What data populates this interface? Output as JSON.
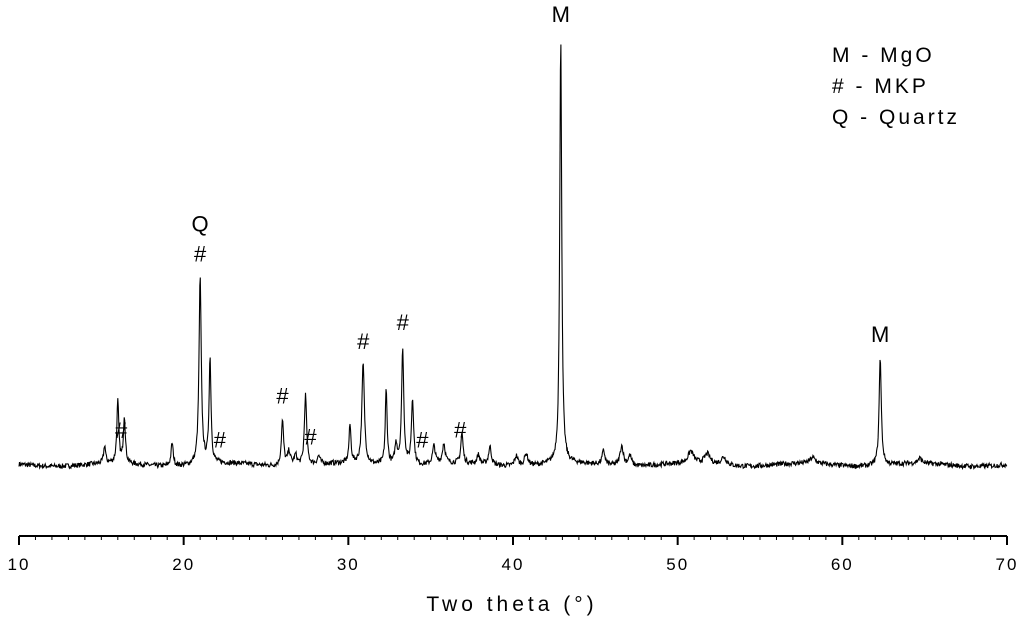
{
  "chart_data": {
    "type": "line",
    "xlabel": "Two theta (°)",
    "ylabel": "",
    "xlim": [
      10,
      70
    ],
    "x_ticks": [
      "10",
      "20",
      "30",
      "40",
      "50",
      "60",
      "70"
    ],
    "legend": [
      "M - MgO",
      "# - MKP",
      "Q - Quartz"
    ],
    "legend_position": "top-right",
    "grid": false,
    "baseline": 0,
    "annotations": [
      {
        "x": 21.0,
        "lines": [
          "Q",
          "#"
        ]
      },
      {
        "x": 16.2,
        "lines": [
          "#"
        ]
      },
      {
        "x": 22.2,
        "lines": [
          "#"
        ]
      },
      {
        "x": 26.0,
        "lines": [
          "#"
        ]
      },
      {
        "x": 27.7,
        "lines": [
          "#"
        ]
      },
      {
        "x": 30.9,
        "lines": [
          "#"
        ]
      },
      {
        "x": 33.3,
        "lines": [
          "#"
        ]
      },
      {
        "x": 34.5,
        "lines": [
          "#"
        ]
      },
      {
        "x": 36.8,
        "lines": [
          "#"
        ]
      },
      {
        "x": 42.9,
        "lines": [
          "M"
        ]
      },
      {
        "x": 62.3,
        "lines": [
          "M"
        ]
      }
    ],
    "peaks": [
      {
        "x": 15.2,
        "h": 18,
        "w": 0.07
      },
      {
        "x": 16.0,
        "h": 62,
        "w": 0.07
      },
      {
        "x": 16.4,
        "h": 47,
        "w": 0.07
      },
      {
        "x": 19.3,
        "h": 23,
        "w": 0.08
      },
      {
        "x": 21.0,
        "h": 187,
        "w": 0.08
      },
      {
        "x": 21.6,
        "h": 105,
        "w": 0.07
      },
      {
        "x": 26.0,
        "h": 45,
        "w": 0.08
      },
      {
        "x": 26.4,
        "h": 14,
        "w": 0.1
      },
      {
        "x": 26.8,
        "h": 10,
        "w": 0.1
      },
      {
        "x": 27.4,
        "h": 70,
        "w": 0.08
      },
      {
        "x": 28.2,
        "h": 8,
        "w": 0.1
      },
      {
        "x": 30.1,
        "h": 38,
        "w": 0.07
      },
      {
        "x": 30.9,
        "h": 100,
        "w": 0.09
      },
      {
        "x": 32.3,
        "h": 75,
        "w": 0.07
      },
      {
        "x": 32.9,
        "h": 20,
        "w": 0.09
      },
      {
        "x": 33.3,
        "h": 117,
        "w": 0.08
      },
      {
        "x": 33.9,
        "h": 66,
        "w": 0.08
      },
      {
        "x": 35.2,
        "h": 18,
        "w": 0.1
      },
      {
        "x": 35.8,
        "h": 20,
        "w": 0.1
      },
      {
        "x": 36.9,
        "h": 30,
        "w": 0.08
      },
      {
        "x": 37.9,
        "h": 9,
        "w": 0.1
      },
      {
        "x": 38.6,
        "h": 18,
        "w": 0.1
      },
      {
        "x": 40.2,
        "h": 10,
        "w": 0.12
      },
      {
        "x": 40.8,
        "h": 12,
        "w": 0.12
      },
      {
        "x": 42.9,
        "h": 428,
        "w": 0.07
      },
      {
        "x": 45.5,
        "h": 14,
        "w": 0.1
      },
      {
        "x": 46.6,
        "h": 20,
        "w": 0.12
      },
      {
        "x": 47.1,
        "h": 10,
        "w": 0.12
      },
      {
        "x": 50.8,
        "h": 12,
        "w": 0.2
      },
      {
        "x": 51.8,
        "h": 10,
        "w": 0.2
      },
      {
        "x": 52.8,
        "h": 8,
        "w": 0.2
      },
      {
        "x": 58.2,
        "h": 6,
        "w": 0.2
      },
      {
        "x": 62.3,
        "h": 108,
        "w": 0.08
      },
      {
        "x": 64.7,
        "h": 5,
        "w": 0.15
      }
    ]
  }
}
